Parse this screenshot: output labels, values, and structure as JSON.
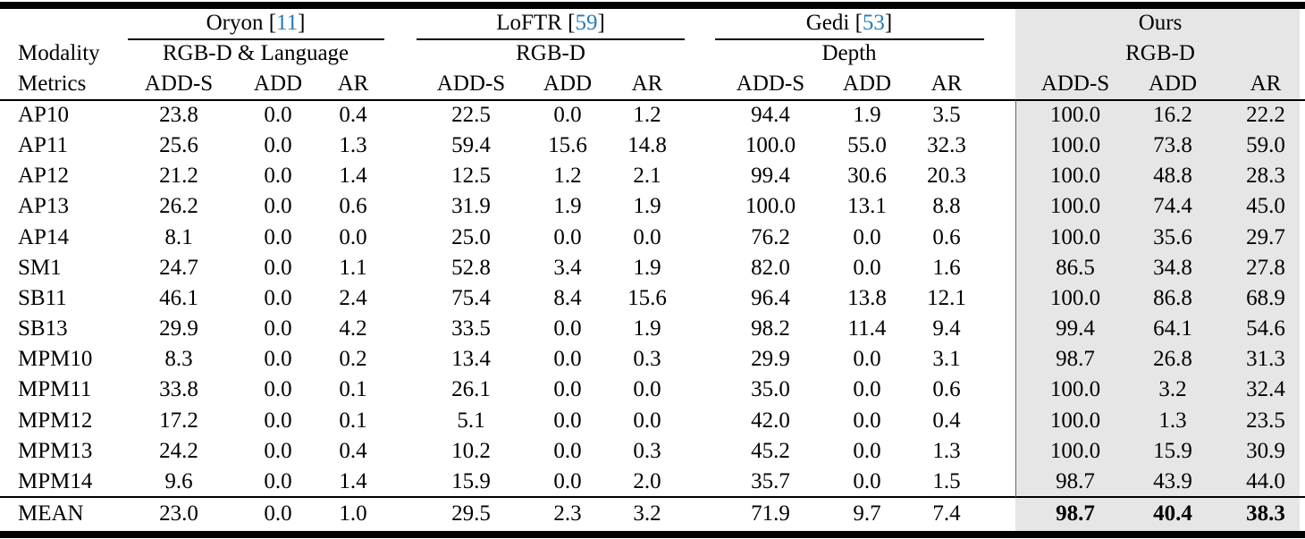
{
  "methods": [
    {
      "name": "Oryon",
      "cite": "11",
      "modality": "RGB-D & Language"
    },
    {
      "name": "LoFTR",
      "cite": "59",
      "modality": "RGB-D"
    },
    {
      "name": "Gedi",
      "cite": "53",
      "modality": "Depth"
    },
    {
      "name": "Ours",
      "cite": "",
      "modality": "RGB-D"
    }
  ],
  "row_labels": {
    "modality": "Modality",
    "metrics": "Metrics"
  },
  "metrics": [
    "ADD-S",
    "ADD",
    "AR"
  ],
  "rows": [
    {
      "label": "AP10",
      "values": [
        "23.8",
        "0.0",
        "0.4",
        "22.5",
        "0.0",
        "1.2",
        "94.4",
        "1.9",
        "3.5",
        "100.0",
        "16.2",
        "22.2"
      ]
    },
    {
      "label": "AP11",
      "values": [
        "25.6",
        "0.0",
        "1.3",
        "59.4",
        "15.6",
        "14.8",
        "100.0",
        "55.0",
        "32.3",
        "100.0",
        "73.8",
        "59.0"
      ]
    },
    {
      "label": "AP12",
      "values": [
        "21.2",
        "0.0",
        "1.4",
        "12.5",
        "1.2",
        "2.1",
        "99.4",
        "30.6",
        "20.3",
        "100.0",
        "48.8",
        "28.3"
      ]
    },
    {
      "label": "AP13",
      "values": [
        "26.2",
        "0.0",
        "0.6",
        "31.9",
        "1.9",
        "1.9",
        "100.0",
        "13.1",
        "8.8",
        "100.0",
        "74.4",
        "45.0"
      ]
    },
    {
      "label": "AP14",
      "values": [
        "8.1",
        "0.0",
        "0.0",
        "25.0",
        "0.0",
        "0.0",
        "76.2",
        "0.0",
        "0.6",
        "100.0",
        "35.6",
        "29.7"
      ]
    },
    {
      "label": "SM1",
      "values": [
        "24.7",
        "0.0",
        "1.1",
        "52.8",
        "3.4",
        "1.9",
        "82.0",
        "0.0",
        "1.6",
        "86.5",
        "34.8",
        "27.8"
      ]
    },
    {
      "label": "SB11",
      "values": [
        "46.1",
        "0.0",
        "2.4",
        "75.4",
        "8.4",
        "15.6",
        "96.4",
        "13.8",
        "12.1",
        "100.0",
        "86.8",
        "68.9"
      ]
    },
    {
      "label": "SB13",
      "values": [
        "29.9",
        "0.0",
        "4.2",
        "33.5",
        "0.0",
        "1.9",
        "98.2",
        "11.4",
        "9.4",
        "99.4",
        "64.1",
        "54.6"
      ]
    },
    {
      "label": "MPM10",
      "values": [
        "8.3",
        "0.0",
        "0.2",
        "13.4",
        "0.0",
        "0.3",
        "29.9",
        "0.0",
        "3.1",
        "98.7",
        "26.8",
        "31.3"
      ]
    },
    {
      "label": "MPM11",
      "values": [
        "33.8",
        "0.0",
        "0.1",
        "26.1",
        "0.0",
        "0.0",
        "35.0",
        "0.0",
        "0.6",
        "100.0",
        "3.2",
        "32.4"
      ]
    },
    {
      "label": "MPM12",
      "values": [
        "17.2",
        "0.0",
        "0.1",
        "5.1",
        "0.0",
        "0.0",
        "42.0",
        "0.0",
        "0.4",
        "100.0",
        "1.3",
        "23.5"
      ]
    },
    {
      "label": "MPM13",
      "values": [
        "24.2",
        "0.0",
        "0.4",
        "10.2",
        "0.0",
        "0.3",
        "45.2",
        "0.0",
        "1.3",
        "100.0",
        "15.9",
        "30.9"
      ]
    },
    {
      "label": "MPM14",
      "values": [
        "9.6",
        "0.0",
        "1.4",
        "15.9",
        "0.0",
        "2.0",
        "35.7",
        "0.0",
        "1.5",
        "98.7",
        "43.9",
        "44.0"
      ]
    }
  ],
  "mean": {
    "label": "MEAN",
    "values": [
      "23.0",
      "0.0",
      "1.0",
      "29.5",
      "2.3",
      "3.2",
      "71.9",
      "9.7",
      "7.4",
      "98.7",
      "40.4",
      "38.3"
    ]
  }
}
